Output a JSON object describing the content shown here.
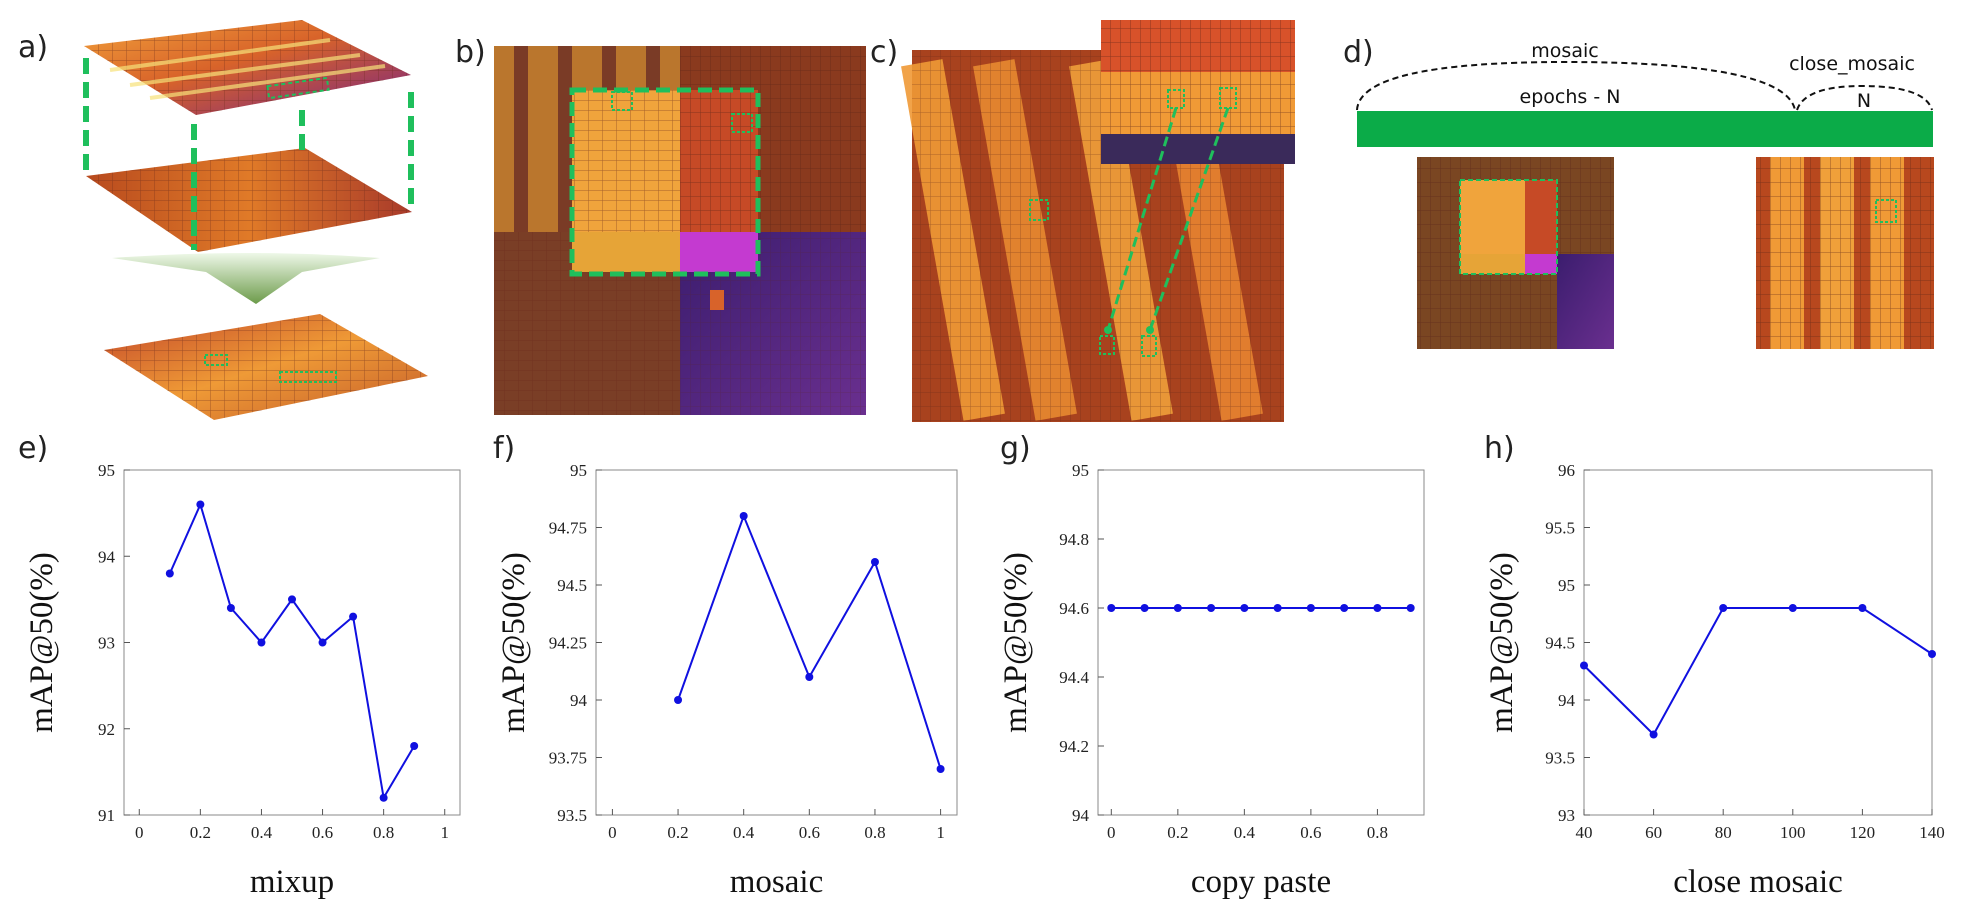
{
  "panels": {
    "a": "a)",
    "b": "b)",
    "c": "c)",
    "d": "d)",
    "e": "e)",
    "f": "f)",
    "g": "g)",
    "h": "h)"
  },
  "diagram_d": {
    "mosaic": "mosaic",
    "epochs": "epochs - N",
    "close_mosaic": "close_mosaic",
    "n": "N",
    "bar_color": "#0bab48"
  },
  "colors": {
    "series": "#1010e0",
    "dashed_box": "#1fbf5c"
  },
  "chart_data": [
    {
      "type": "line",
      "x": [
        0.1,
        0.2,
        0.3,
        0.4,
        0.5,
        0.6,
        0.7,
        0.8,
        0.9
      ],
      "values": [
        93.8,
        94.6,
        93.4,
        93.0,
        93.5,
        93.0,
        93.3,
        91.2,
        91.8
      ],
      "xlabel": "mixup",
      "ylabel": "mAP@50(%)",
      "xlim": [
        -0.05,
        1.05
      ],
      "ylim": [
        91,
        95
      ],
      "xticks": [
        0,
        0.2,
        0.4,
        0.6,
        0.8,
        1
      ],
      "xtick_labels": [
        "0",
        "0.2",
        "0.4",
        "0.6",
        "0.8",
        "1"
      ],
      "yticks": [
        91,
        92,
        93,
        94,
        95
      ],
      "ytick_labels": [
        "91",
        "92",
        "93",
        "94",
        "95"
      ]
    },
    {
      "type": "line",
      "x": [
        0.2,
        0.4,
        0.6,
        0.8,
        1.0
      ],
      "values": [
        94.0,
        94.8,
        94.1,
        94.6,
        93.7
      ],
      "xlabel": "mosaic",
      "ylabel": "mAP@50(%)",
      "xlim": [
        -0.05,
        1.05
      ],
      "ylim": [
        93.5,
        95
      ],
      "xticks": [
        0,
        0.2,
        0.4,
        0.6,
        0.8,
        1
      ],
      "xtick_labels": [
        "0",
        "0.2",
        "0.4",
        "0.6",
        "0.8",
        "1"
      ],
      "yticks": [
        93.5,
        93.75,
        94,
        94.25,
        94.5,
        94.75,
        95
      ],
      "ytick_labels": [
        "93.5",
        "93.75",
        "94",
        "94.25",
        "94.5",
        "94.75",
        "95"
      ]
    },
    {
      "type": "line",
      "x": [
        0,
        0.1,
        0.2,
        0.3,
        0.4,
        0.5,
        0.6,
        0.7,
        0.8,
        0.9
      ],
      "values": [
        94.6,
        94.6,
        94.6,
        94.6,
        94.6,
        94.6,
        94.6,
        94.6,
        94.6,
        94.6
      ],
      "xlabel": "copy paste",
      "ylabel": "mAP@50(%)",
      "xlim": [
        -0.04,
        0.94
      ],
      "ylim": [
        94,
        95
      ],
      "xticks": [
        0,
        0.2,
        0.4,
        0.6,
        0.8
      ],
      "xtick_labels": [
        "0",
        "0.2",
        "0.4",
        "0.6",
        "0.8"
      ],
      "yticks": [
        94,
        94.2,
        94.4,
        94.6,
        94.8,
        95
      ],
      "ytick_labels": [
        "94",
        "94.2",
        "94.4",
        "94.6",
        "94.8",
        "95"
      ]
    },
    {
      "type": "line",
      "x": [
        40,
        60,
        80,
        100,
        120,
        140
      ],
      "values": [
        94.3,
        93.7,
        94.8,
        94.8,
        94.8,
        94.4
      ],
      "xlabel": "close mosaic",
      "ylabel": "mAP@50(%)",
      "xlim": [
        40,
        140
      ],
      "ylim": [
        93,
        96
      ],
      "xticks": [
        40,
        60,
        80,
        100,
        120,
        140
      ],
      "xtick_labels": [
        "40",
        "60",
        "80",
        "100",
        "120",
        "140"
      ],
      "yticks": [
        93,
        93.5,
        94,
        94.5,
        95,
        95.5,
        96
      ],
      "ytick_labels": [
        "93",
        "93.5",
        "94",
        "94.5",
        "95",
        "95.5",
        "96"
      ]
    }
  ]
}
